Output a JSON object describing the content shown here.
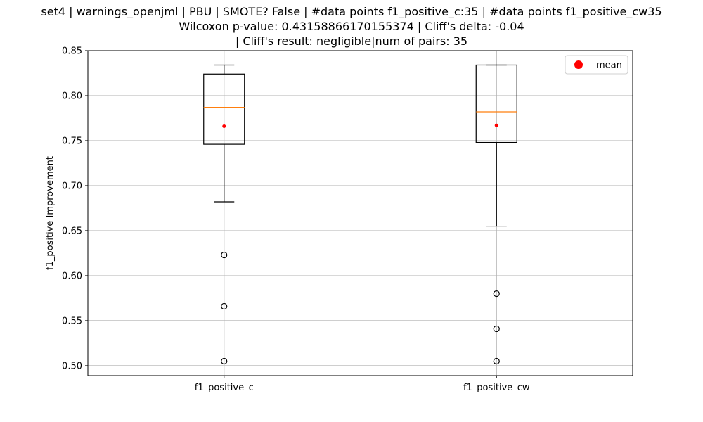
{
  "chart_data": {
    "type": "box",
    "title_lines": [
      "set4 | warnings_openjml | PBU | SMOTE? False | #data points f1_positive_c:35 | #data points f1_positive_cw35",
      "Wilcoxon p-value: 0.43158866170155374 | Cliff's delta: -0.04",
      "| Cliff's result: negligible|num of pairs: 35"
    ],
    "ylabel": "f1_positive Improvement",
    "xlabel": "",
    "ylim": [
      0.489,
      0.85
    ],
    "yticks": [
      "0.50",
      "0.55",
      "0.60",
      "0.65",
      "0.70",
      "0.75",
      "0.80",
      "0.85"
    ],
    "grid": true,
    "legend": {
      "position": "top-right",
      "entries": [
        "mean"
      ]
    },
    "colors": {
      "box": "#000000",
      "median": "#ff7f0e",
      "mean": "#ff0000",
      "grid": "#b0b0b0"
    },
    "categories": [
      "f1_positive_c",
      "f1_positive_cw"
    ],
    "boxes": [
      {
        "name": "f1_positive_c",
        "whisker_low": 0.682,
        "q1": 0.746,
        "median": 0.787,
        "q3": 0.824,
        "whisker_high": 0.834,
        "mean": 0.766,
        "outliers": [
          0.623,
          0.566,
          0.505
        ]
      },
      {
        "name": "f1_positive_cw",
        "whisker_low": 0.655,
        "q1": 0.748,
        "median": 0.782,
        "q3": 0.834,
        "whisker_high": 0.834,
        "mean": 0.767,
        "outliers": [
          0.58,
          0.541,
          0.505
        ]
      }
    ]
  }
}
